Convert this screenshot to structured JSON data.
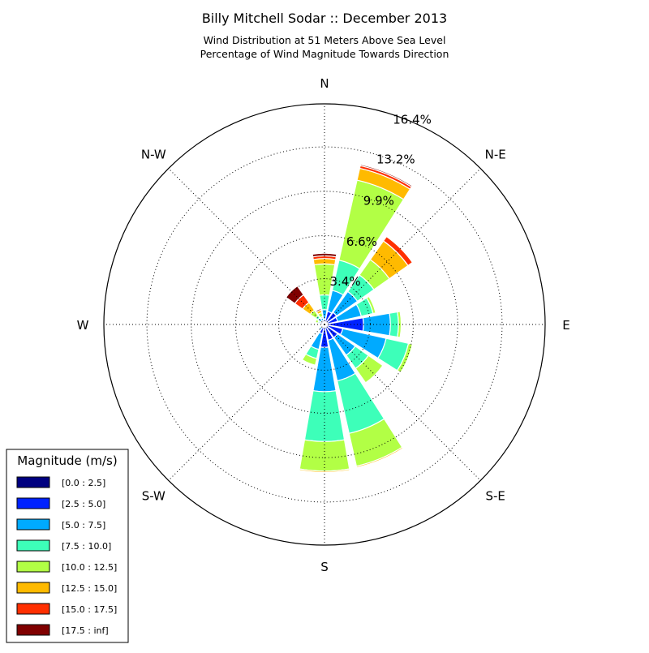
{
  "chart_data": {
    "type": "windrose",
    "title": "Billy Mitchell Sodar :: December 2013",
    "subtitle_lines": [
      "Wind Distribution at 51 Meters Above Sea Level",
      "Percentage of Wind Magnitude Towards Direction"
    ],
    "direction_labels": [
      "N",
      "N-E",
      "E",
      "S-E",
      "S",
      "S-W",
      "W",
      "N-W"
    ],
    "radial_ticks": [
      "3.4%",
      "6.6%",
      "9.9%",
      "13.2%",
      "16.4%"
    ],
    "radial_tick_values": [
      3.4,
      6.6,
      9.9,
      13.2,
      16.4
    ],
    "r_max": 16.4,
    "grid": true,
    "legend": {
      "title": "Magnitude (m/s)",
      "placement": "lower-left",
      "bins": [
        "[0.0 : 2.5]",
        "[2.5 : 5.0]",
        "[5.0 : 7.5]",
        "[7.5 : 10.0]",
        "[10.0 : 12.5]",
        "[12.5 : 15.0]",
        "[15.0 : 17.5]",
        "[17.5 : inf]"
      ],
      "colors": [
        "#000080",
        "#0022ff",
        "#00aaff",
        "#3dffb9",
        "#b2ff45",
        "#ffba00",
        "#ff2f00",
        "#800000"
      ]
    },
    "directions_deg": [
      0,
      22.5,
      45,
      67.5,
      90,
      112.5,
      135,
      157.5,
      180,
      202.5,
      225,
      247.5,
      270,
      292.5,
      315,
      337.5
    ],
    "cumulative_percent": [
      [
        0.05,
        0.4,
        1.1,
        2.2,
        4.5,
        4.9,
        5.1,
        5.3
      ],
      [
        0.05,
        1.0,
        2.6,
        4.9,
        11.0,
        11.9,
        12.1,
        12.2
      ],
      [
        0.05,
        1.1,
        3.0,
        4.5,
        5.9,
        7.6,
        8.0,
        8.0
      ],
      [
        0.05,
        1.0,
        2.8,
        3.7,
        3.9,
        3.9,
        3.9,
        3.9
      ],
      [
        0.05,
        2.9,
        4.9,
        5.5,
        5.7,
        5.7,
        5.7,
        5.7
      ],
      [
        0.05,
        1.4,
        4.7,
        6.4,
        6.7,
        6.7,
        6.7,
        6.7
      ],
      [
        0.05,
        1.2,
        2.8,
        4.0,
        5.3,
        5.3,
        5.3,
        5.3
      ],
      [
        0.05,
        1.2,
        4.3,
        8.3,
        10.8,
        10.9,
        10.9,
        10.9
      ],
      [
        0.05,
        1.7,
        5.0,
        8.7,
        10.9,
        11.0,
        11.0,
        11.0
      ],
      [
        0.05,
        0.7,
        1.9,
        2.6,
        3.1,
        3.1,
        3.1,
        3.1
      ],
      [
        0.05,
        0.3,
        0.5,
        0.5,
        0.5,
        0.5,
        0.5,
        0.5
      ],
      [
        0.05,
        0.1,
        0.1,
        0.1,
        0.1,
        0.1,
        0.1,
        0.1
      ],
      [
        0.05,
        0.1,
        0.1,
        0.1,
        0.1,
        0.1,
        0.1,
        0.1
      ],
      [
        0.05,
        0.3,
        0.4,
        0.5,
        0.7,
        0.7,
        0.7,
        0.7
      ],
      [
        0.05,
        0.3,
        0.6,
        0.8,
        1.3,
        2.0,
        2.7,
        3.5
      ],
      [
        0.05,
        0.3,
        0.5,
        0.6,
        0.9,
        1.1,
        1.1,
        1.2
      ]
    ]
  }
}
